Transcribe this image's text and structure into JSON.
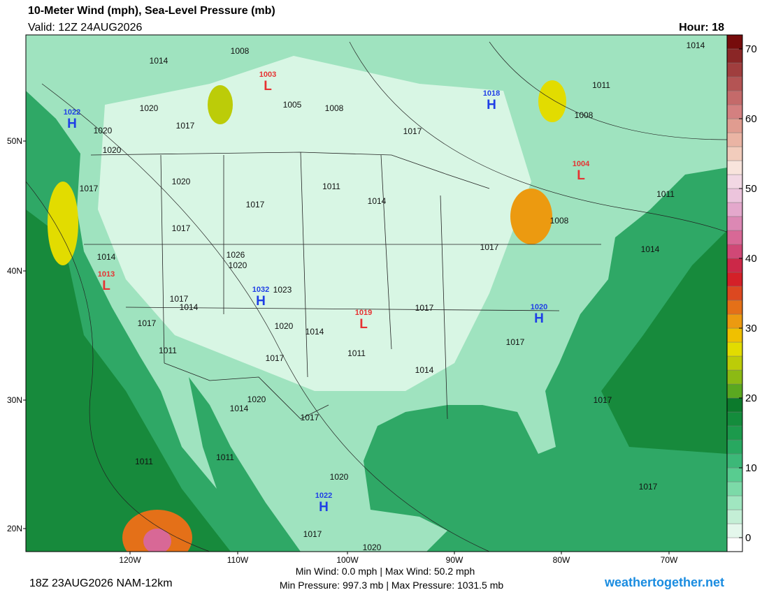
{
  "header": {
    "title": "10-Meter Wind (mph), Sea-Level Pressure (mb)",
    "valid": "Valid: 12Z 24AUG2026",
    "hour": "Hour: 18"
  },
  "colorbar": {
    "range": [
      -2,
      72
    ],
    "ticks": [
      0,
      10,
      20,
      30,
      40,
      50,
      60,
      70
    ],
    "colors": [
      "#ffffff",
      "#e4f7ec",
      "#c4efd6",
      "#a0e6c0",
      "#7cdaa8",
      "#58cc90",
      "#3cb878",
      "#28a860",
      "#1c9a4c",
      "#148c3c",
      "#0c7a2c",
      "#5aa820",
      "#8cba14",
      "#bccc08",
      "#e2dc00",
      "#f0c000",
      "#ec9a10",
      "#e47018",
      "#dc4820",
      "#d42028",
      "#cc2848",
      "#d04876",
      "#d86896",
      "#dc88b4",
      "#e4a8cc",
      "#ecc4dc",
      "#f2d8e4",
      "#f8e4dc",
      "#f2ccbc",
      "#eab4a4",
      "#e09c90",
      "#d48080",
      "#c46a6a",
      "#b45454",
      "#a03e3e",
      "#8a2626",
      "#760c0c"
    ]
  },
  "map": {
    "lat_labels": [
      "20N",
      "30N",
      "40N",
      "50N"
    ],
    "lon_labels": [
      "120W",
      "110W",
      "100W",
      "90W",
      "80W",
      "70W"
    ],
    "centers": [
      {
        "type": "H",
        "pressure": 1022
      },
      {
        "type": "L",
        "pressure": 1003
      },
      {
        "type": "H",
        "pressure": 1018
      },
      {
        "type": "L",
        "pressure": 1004
      },
      {
        "type": "L",
        "pressure": 1013
      },
      {
        "type": "H",
        "pressure": 1032
      },
      {
        "type": "L",
        "pressure": 1019
      },
      {
        "type": "H",
        "pressure": 1020
      },
      {
        "type": "H",
        "pressure": 1022
      }
    ],
    "isobar_labels": [
      1008,
      1014,
      1020,
      1017,
      1020,
      1020,
      1005,
      1008,
      1017,
      1011,
      1008,
      1014,
      1017,
      1020,
      1011,
      1014,
      1017,
      1017,
      1011,
      1008,
      1017,
      1014,
      1014,
      1026,
      1020,
      1023,
      1017,
      1014,
      1017,
      1017,
      1020,
      1014,
      1011,
      1017,
      1011,
      1017,
      1014,
      1020,
      1014,
      1017,
      1017,
      1011,
      1011,
      1020,
      1017,
      1017,
      1020
    ]
  },
  "footer": {
    "run": "18Z 23AUG2026 NAM-12km",
    "wind": "Min Wind:  0.0 mph | Max Wind: 50.2 mph",
    "pressure": "Min Pressure: 997.3 mb | Max Pressure: 1031.5 mb",
    "site": "weathertogether.net"
  }
}
